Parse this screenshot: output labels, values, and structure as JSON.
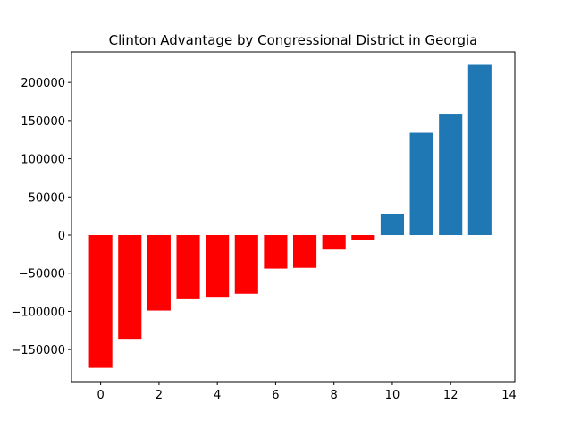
{
  "chart_data": {
    "type": "bar",
    "title": "Clinton Advantage by Congressional District in Georgia",
    "xlabel": "",
    "ylabel": "",
    "x": [
      0,
      1,
      2,
      3,
      4,
      5,
      6,
      7,
      8,
      9,
      10,
      11,
      12,
      13
    ],
    "values": [
      -174000,
      -136000,
      -99000,
      -83000,
      -81000,
      -77000,
      -44000,
      -43000,
      -19000,
      -6000,
      28000,
      134000,
      158000,
      223000
    ],
    "bar_colors": [
      "#ff0000",
      "#ff0000",
      "#ff0000",
      "#ff0000",
      "#ff0000",
      "#ff0000",
      "#ff0000",
      "#ff0000",
      "#ff0000",
      "#ff0000",
      "#1f77b4",
      "#1f77b4",
      "#1f77b4",
      "#1f77b4"
    ],
    "xlim": [
      -1,
      14.2
    ],
    "ylim": [
      -192000,
      240000
    ],
    "xticks": [
      0,
      2,
      4,
      6,
      8,
      10,
      12,
      14
    ],
    "xtick_labels": [
      "0",
      "2",
      "4",
      "6",
      "8",
      "10",
      "12",
      "14"
    ],
    "yticks": [
      -150000,
      -100000,
      -50000,
      0,
      50000,
      100000,
      150000,
      200000
    ],
    "ytick_labels": [
      "−150000",
      "−100000",
      "−50000",
      "0",
      "50000",
      "100000",
      "150000",
      "200000"
    ],
    "grid": false,
    "legend": "none"
  }
}
